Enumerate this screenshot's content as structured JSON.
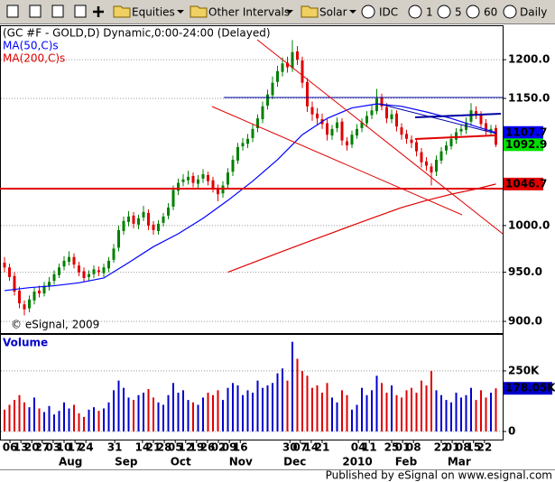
{
  "toolbar": {
    "items": [
      "Equities",
      "Other Intervals",
      "Solar",
      "IDC",
      "1",
      "5",
      "60",
      "Daily"
    ]
  },
  "footer": "Published by eSignal on www.esignal.com",
  "chart_data": {
    "type": "candlestick",
    "title": "(GC #F - GOLD,D) Dynamic,0:00-24:00 (Delayed)",
    "copyright": "© eSignal, 2009",
    "up_color": "#008000",
    "down_color": "#e00000",
    "open": [
      960,
      955,
      946,
      931,
      917,
      913,
      921,
      931,
      928,
      935,
      941,
      947,
      956,
      961,
      966,
      957,
      951,
      945,
      948,
      952,
      949,
      954,
      963,
      976,
      994,
      1004,
      1011,
      1001,
      1009,
      1014,
      1001,
      994,
      1003,
      1011,
      1021,
      1039,
      1049,
      1051,
      1056,
      1047,
      1053,
      1057,
      1051,
      1041,
      1036,
      1046,
      1061,
      1074,
      1091,
      1094,
      1101,
      1113,
      1124,
      1141,
      1154,
      1171,
      1184,
      1196,
      1189,
      1211,
      1199,
      1171,
      1139,
      1131,
      1124,
      1119,
      1104,
      1113,
      1121,
      1097,
      1093,
      1104,
      1113,
      1119,
      1129,
      1134,
      1151,
      1139,
      1124,
      1131,
      1114,
      1106,
      1099,
      1096,
      1084,
      1073,
      1067,
      1061,
      1074,
      1086,
      1091,
      1099,
      1109,
      1111,
      1121,
      1134,
      1129,
      1119,
      1109,
      1113
    ],
    "high": [
      966,
      959,
      950,
      935,
      921,
      926,
      934,
      936,
      940,
      945,
      952,
      959,
      967,
      972,
      970,
      961,
      955,
      952,
      957,
      956,
      959,
      966,
      980,
      1000,
      1010,
      1016,
      1015,
      1012,
      1022,
      1018,
      1005,
      1006,
      1014,
      1025,
      1045,
      1053,
      1058,
      1062,
      1060,
      1057,
      1064,
      1061,
      1055,
      1046,
      1050,
      1065,
      1080,
      1095,
      1101,
      1106,
      1118,
      1130,
      1146,
      1161,
      1178,
      1192,
      1203,
      1204,
      1226,
      1218,
      1204,
      1176,
      1146,
      1138,
      1131,
      1124,
      1117,
      1126,
      1125,
      1102,
      1110,
      1118,
      1125,
      1134,
      1142,
      1162,
      1156,
      1144,
      1136,
      1135,
      1119,
      1111,
      1104,
      1100,
      1089,
      1078,
      1071,
      1080,
      1090,
      1097,
      1106,
      1113,
      1118,
      1126,
      1144,
      1140,
      1134,
      1124,
      1117,
      1117
    ],
    "low": [
      950,
      941,
      926,
      913,
      906,
      909,
      917,
      924,
      925,
      931,
      937,
      944,
      952,
      957,
      954,
      946,
      940,
      941,
      944,
      946,
      945,
      950,
      960,
      972,
      990,
      999,
      997,
      996,
      1005,
      995,
      990,
      990,
      999,
      1007,
      1017,
      1034,
      1044,
      1046,
      1043,
      1042,
      1048,
      1045,
      1037,
      1027,
      1031,
      1042,
      1056,
      1070,
      1086,
      1089,
      1096,
      1108,
      1119,
      1136,
      1149,
      1165,
      1178,
      1183,
      1184,
      1193,
      1163,
      1133,
      1122,
      1118,
      1112,
      1098,
      1099,
      1108,
      1092,
      1086,
      1089,
      1100,
      1108,
      1114,
      1124,
      1130,
      1135,
      1119,
      1119,
      1109,
      1099,
      1094,
      1089,
      1079,
      1066,
      1062,
      1045,
      1056,
      1070,
      1081,
      1087,
      1094,
      1104,
      1106,
      1116,
      1124,
      1113,
      1104,
      1104,
      1090
    ],
    "close": [
      955,
      945,
      930,
      918,
      912,
      922,
      930,
      928,
      936,
      940,
      948,
      955,
      962,
      966,
      958,
      950,
      944,
      948,
      953,
      950,
      955,
      962,
      975,
      995,
      1005,
      1010,
      1002,
      1008,
      1015,
      1000,
      995,
      1002,
      1010,
      1020,
      1040,
      1048,
      1052,
      1055,
      1048,
      1052,
      1058,
      1050,
      1042,
      1035,
      1045,
      1060,
      1075,
      1090,
      1095,
      1100,
      1112,
      1125,
      1140,
      1155,
      1170,
      1185,
      1195,
      1190,
      1210,
      1200,
      1170,
      1140,
      1130,
      1125,
      1118,
      1105,
      1112,
      1120,
      1098,
      1092,
      1105,
      1112,
      1120,
      1128,
      1135,
      1150,
      1140,
      1125,
      1130,
      1115,
      1105,
      1100,
      1095,
      1085,
      1072,
      1068,
      1060,
      1075,
      1085,
      1092,
      1100,
      1108,
      1112,
      1120,
      1135,
      1130,
      1118,
      1110,
      1112,
      1092.9
    ],
    "ylim": [
      888,
      1245
    ],
    "log_scale": true,
    "grid": true,
    "yticks": [
      {
        "value": 900,
        "label": "900.0"
      },
      {
        "value": 950,
        "label": "950.0"
      },
      {
        "value": 1000,
        "label": "1000.0"
      },
      {
        "value": 1150,
        "label": "1150.0"
      },
      {
        "value": 1200,
        "label": "1200.0"
      }
    ],
    "xticks": [
      {
        "value": 1.1,
        "label": "06"
      },
      {
        "value": 3.3,
        "label": "13"
      },
      {
        "value": 5.5,
        "label": "20"
      },
      {
        "value": 7.6,
        "label": "27"
      },
      {
        "value": 9.8,
        "label": "03"
      },
      {
        "value": 12,
        "label": "10"
      },
      {
        "value": 14.2,
        "label": "17"
      },
      {
        "value": 16.4,
        "label": "24"
      },
      {
        "value": 22.2,
        "label": "31"
      },
      {
        "value": 27.8,
        "label": "14"
      },
      {
        "value": 30,
        "label": "21"
      },
      {
        "value": 32.2,
        "label": "28"
      },
      {
        "value": 34.4,
        "label": "05"
      },
      {
        "value": 36.5,
        "label": "12"
      },
      {
        "value": 38.7,
        "label": "19"
      },
      {
        "value": 40.9,
        "label": "26"
      },
      {
        "value": 43.1,
        "label": "02"
      },
      {
        "value": 45.3,
        "label": "09"
      },
      {
        "value": 47.5,
        "label": "16"
      },
      {
        "value": 57.5,
        "label": "30"
      },
      {
        "value": 59.6,
        "label": "07"
      },
      {
        "value": 61.8,
        "label": "14"
      },
      {
        "value": 64,
        "label": "21"
      },
      {
        "value": 71.3,
        "label": "04"
      },
      {
        "value": 73.5,
        "label": "11"
      },
      {
        "value": 78,
        "label": "25"
      },
      {
        "value": 80.2,
        "label": "01"
      },
      {
        "value": 82.4,
        "label": "08"
      },
      {
        "value": 88,
        "label": "22"
      },
      {
        "value": 90.2,
        "label": "01"
      },
      {
        "value": 92.4,
        "label": "08"
      },
      {
        "value": 94.5,
        "label": "15"
      },
      {
        "value": 96.7,
        "label": "22"
      }
    ],
    "month_labels": [
      {
        "value": 13.3,
        "label": "Aug"
      },
      {
        "value": 24.5,
        "label": "Sep"
      },
      {
        "value": 35.5,
        "label": "Oct"
      },
      {
        "value": 47.6,
        "label": "Nov"
      },
      {
        "value": 58.5,
        "label": "Dec"
      },
      {
        "value": 71.1,
        "label": "2010"
      },
      {
        "value": 80.9,
        "label": "Feb"
      },
      {
        "value": 91.6,
        "label": "Mar"
      }
    ],
    "indicators": [
      {
        "name": "MA(50,C)s",
        "color": "#0000ff",
        "x": [
          0,
          5,
          10,
          15,
          20,
          25,
          30,
          35,
          40,
          45,
          50,
          55,
          60,
          65,
          70,
          75,
          80,
          85,
          90,
          95,
          99
        ],
        "values": [
          931,
          934,
          936,
          939,
          944,
          960,
          977,
          991,
          1008,
          1028,
          1050,
          1075,
          1105,
          1125,
          1138,
          1143,
          1140,
          1133,
          1125,
          1115,
          1107.7
        ]
      },
      {
        "name": "MA(200,C)s",
        "color": "#e00000",
        "x": [
          45,
          50,
          55,
          60,
          65,
          70,
          75,
          80,
          85,
          90,
          95,
          99
        ],
        "values": [
          950,
          960,
          970,
          980,
          990,
          1000,
          1010,
          1020,
          1028,
          1035,
          1041,
          1046.7
        ]
      }
    ],
    "volume": {
      "title": "Volume",
      "up_color": "#0000cc",
      "down_color": "#e00000",
      "values": [
        90000,
        110000,
        130000,
        150000,
        120000,
        100000,
        140000,
        95000,
        80000,
        105000,
        70000,
        85000,
        120000,
        95000,
        110000,
        75000,
        60000,
        90000,
        100000,
        85000,
        95000,
        120000,
        170000,
        210000,
        180000,
        140000,
        130000,
        150000,
        160000,
        175000,
        140000,
        120000,
        110000,
        150000,
        200000,
        160000,
        170000,
        130000,
        120000,
        110000,
        140000,
        160000,
        150000,
        170000,
        130000,
        180000,
        200000,
        190000,
        150000,
        170000,
        160000,
        210000,
        180000,
        190000,
        200000,
        240000,
        260000,
        210000,
        370000,
        300000,
        250000,
        230000,
        180000,
        190000,
        160000,
        200000,
        140000,
        120000,
        170000,
        150000,
        90000,
        110000,
        180000,
        150000,
        170000,
        230000,
        200000,
        160000,
        190000,
        150000,
        140000,
        170000,
        180000,
        160000,
        210000,
        190000,
        250000,
        170000,
        150000,
        130000,
        120000,
        160000,
        140000,
        150000,
        180000,
        130000,
        170000,
        140000,
        160000,
        178050
      ],
      "last_value_label": "178.05K",
      "ylim": [
        0,
        395000
      ],
      "yticks": [
        0,
        {
          "value": 250000,
          "label": "250K"
        }
      ]
    }
  }
}
